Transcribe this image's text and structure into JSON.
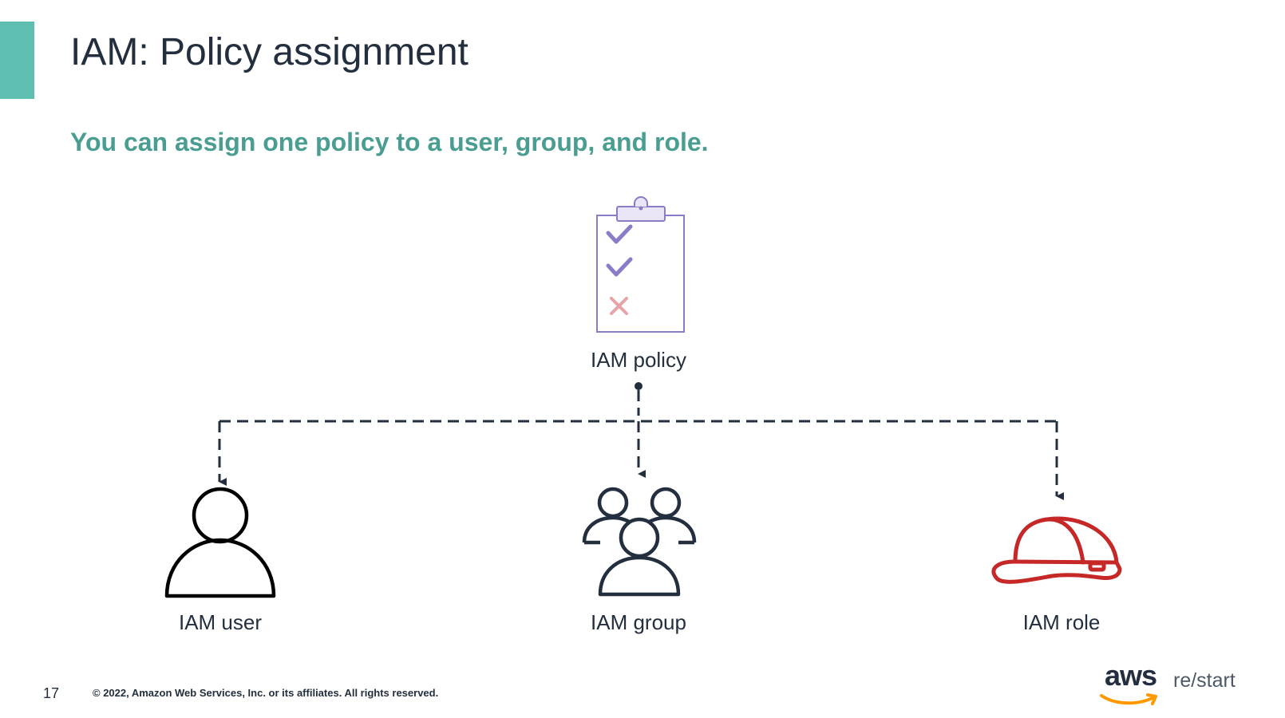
{
  "slide": {
    "title": "IAM: Policy assignment",
    "subtitle": "You can assign one policy to a user, group, and role.",
    "page_number": "17",
    "copyright": "© 2022, Amazon Web Services, Inc. or its affiliates. All rights reserved."
  },
  "diagram": {
    "policy": {
      "label": "IAM policy",
      "icon": "clipboard-checklist-icon"
    },
    "targets": [
      {
        "label": "IAM user",
        "icon": "user-icon"
      },
      {
        "label": "IAM group",
        "icon": "group-icon"
      },
      {
        "label": "IAM role",
        "icon": "hard-hat-icon"
      }
    ]
  },
  "brand": {
    "logo": "aws",
    "product": "re/start"
  },
  "colors": {
    "accent": "#5ebfb0",
    "subtitle": "#4a9d91",
    "text": "#232f3e",
    "policy_icon": "#8c7bc8",
    "deny_mark": "#e8a3a8",
    "role_icon": "#c62828",
    "aws_smile": "#ff9900"
  }
}
